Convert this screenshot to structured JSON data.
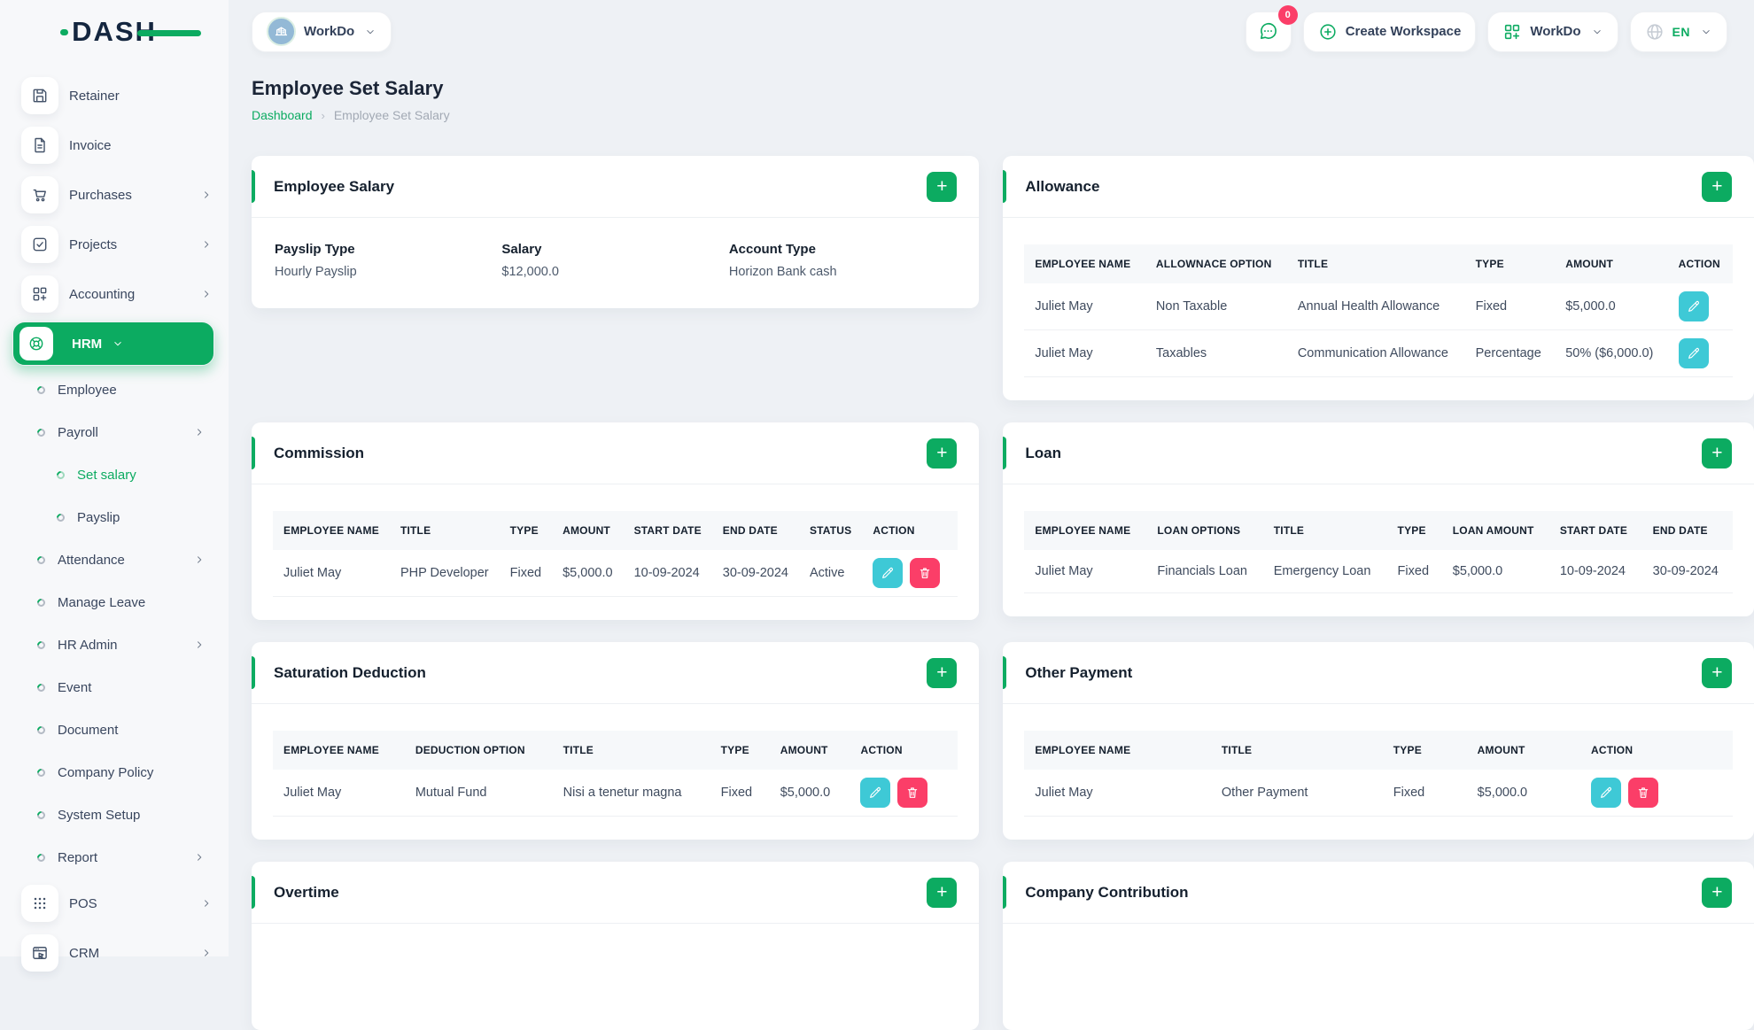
{
  "brand": {
    "logo": "DASH"
  },
  "ui": {
    "plus": "+"
  },
  "colors": {
    "primary_green": "#0cab61",
    "edit_teal": "#3ec9d6",
    "delete_pink": "#fb3e68",
    "badge_pink": "#fb3e68"
  },
  "topbar": {
    "workspace": {
      "name": "WorkDo"
    },
    "messages": {
      "badge": "0"
    },
    "create_workspace": "Create Workspace",
    "app_menu": "WorkDo",
    "language": "EN"
  },
  "page": {
    "title": "Employee Set Salary",
    "breadcrumb": {
      "home": "Dashboard",
      "separator": "›",
      "current": "Employee Set Salary"
    }
  },
  "sidebar": {
    "items": [
      {
        "label": "Retainer",
        "kind": "tile",
        "icon": "save"
      },
      {
        "label": "Invoice",
        "kind": "tile",
        "icon": "file"
      },
      {
        "label": "Purchases",
        "kind": "tile",
        "icon": "cart",
        "chevron": "right"
      },
      {
        "label": "Projects",
        "kind": "tile",
        "icon": "check-square",
        "chevron": "right"
      },
      {
        "label": "Accounting",
        "kind": "tile",
        "icon": "grid-plus",
        "chevron": "right"
      },
      {
        "label": "HRM",
        "kind": "tile",
        "icon": "lifebuoy",
        "chevron": "down",
        "active": true
      },
      {
        "label": "Employee",
        "kind": "sub",
        "level": 1
      },
      {
        "label": "Payroll",
        "kind": "sub",
        "level": 1,
        "chevron": "right"
      },
      {
        "label": "Set salary",
        "kind": "sub",
        "level": 2,
        "active": true
      },
      {
        "label": "Payslip",
        "kind": "sub",
        "level": 2
      },
      {
        "label": "Attendance",
        "kind": "sub",
        "level": 1,
        "chevron": "right"
      },
      {
        "label": "Manage Leave",
        "kind": "sub",
        "level": 1
      },
      {
        "label": "HR Admin",
        "kind": "sub",
        "level": 1,
        "chevron": "right"
      },
      {
        "label": "Event",
        "kind": "sub",
        "level": 1
      },
      {
        "label": "Document",
        "kind": "sub",
        "level": 1
      },
      {
        "label": "Company Policy",
        "kind": "sub",
        "level": 1
      },
      {
        "label": "System Setup",
        "kind": "sub",
        "level": 1
      },
      {
        "label": "Report",
        "kind": "sub",
        "level": 1,
        "chevron": "right"
      },
      {
        "label": "POS",
        "kind": "tile",
        "icon": "dots-grid",
        "chevron": "right"
      },
      {
        "label": "CRM",
        "kind": "tile",
        "icon": "browser",
        "chevron": "right"
      }
    ]
  },
  "cards": {
    "employee_salary": {
      "title": "Employee Salary",
      "fields": [
        {
          "label": "Payslip Type",
          "value": "Hourly Payslip"
        },
        {
          "label": "Salary",
          "value": "$12,000.0"
        },
        {
          "label": "Account Type",
          "value": "Horizon Bank cash"
        }
      ]
    },
    "allowance": {
      "title": "Allowance",
      "table": {
        "columns": [
          "EMPLOYEE NAME",
          "ALLOWNACE OPTION",
          "TITLE",
          "TYPE",
          "AMOUNT",
          "ACTION"
        ],
        "rows": [
          [
            "Juliet May",
            "Non Taxable",
            "Annual Health Allowance",
            "Fixed",
            "$5,000.0"
          ],
          [
            "Juliet May",
            "Taxables",
            "Communication Allowance",
            "Percentage",
            "50% ($6,000.0)"
          ]
        ],
        "row_actions": [
          "edit"
        ]
      }
    },
    "commission": {
      "title": "Commission",
      "table": {
        "columns": [
          "EMPLOYEE NAME",
          "TITLE",
          "TYPE",
          "AMOUNT",
          "START DATE",
          "END DATE",
          "STATUS",
          "ACTION"
        ],
        "rows": [
          [
            "Juliet May",
            "PHP Developer",
            "Fixed",
            "$5,000.0",
            "10-09-2024",
            "30-09-2024",
            "Active"
          ]
        ],
        "row_actions": [
          "edit",
          "delete"
        ]
      }
    },
    "loan": {
      "title": "Loan",
      "table": {
        "columns": [
          "EMPLOYEE NAME",
          "LOAN OPTIONS",
          "TITLE",
          "TYPE",
          "LOAN AMOUNT",
          "START DATE",
          "END DATE"
        ],
        "rows": [
          [
            "Juliet May",
            "Financials Loan",
            "Emergency Loan",
            "Fixed",
            "$5,000.0",
            "10-09-2024",
            "30-09-2024"
          ]
        ],
        "row_actions": []
      }
    },
    "saturation_deduction": {
      "title": "Saturation Deduction",
      "table": {
        "columns": [
          "EMPLOYEE NAME",
          "DEDUCTION OPTION",
          "TITLE",
          "TYPE",
          "AMOUNT",
          "ACTION"
        ],
        "rows": [
          [
            "Juliet May",
            "Mutual Fund",
            "Nisi a tenetur magna",
            "Fixed",
            "$5,000.0"
          ]
        ],
        "row_actions": [
          "edit",
          "delete"
        ]
      }
    },
    "other_payment": {
      "title": "Other Payment",
      "table": {
        "columns": [
          "EMPLOYEE NAME",
          "TITLE",
          "TYPE",
          "AMOUNT",
          "ACTION"
        ],
        "rows": [
          [
            "Juliet May",
            "Other Payment",
            "Fixed",
            "$5,000.0"
          ]
        ],
        "row_actions": [
          "edit",
          "delete"
        ]
      }
    },
    "overtime": {
      "title": "Overtime"
    },
    "company_contribution": {
      "title": "Company Contribution"
    }
  }
}
